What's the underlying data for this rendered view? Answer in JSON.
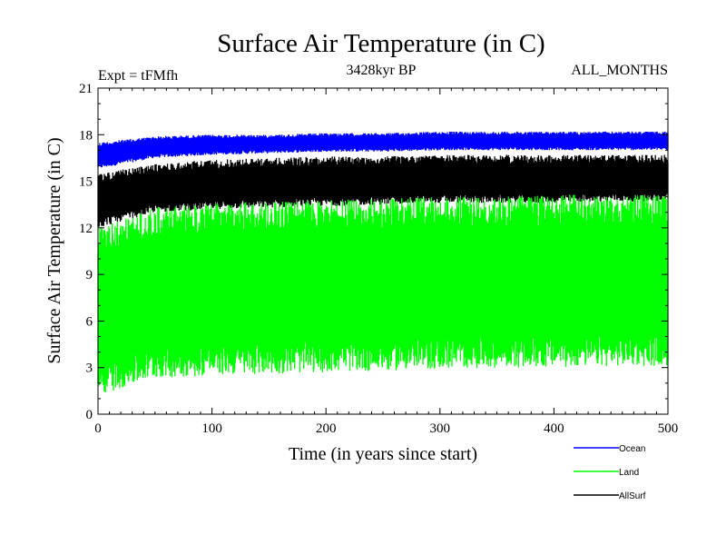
{
  "chart_data": {
    "type": "line",
    "title": "Surface Air Temperature (in C)",
    "subtitle_left": "Expt = tFMfh",
    "subtitle_center": "3428kyr BP",
    "subtitle_right": "ALL_MONTHS",
    "xlabel": "Time (in years since start)",
    "ylabel": "Surface Air Temperature (in C)",
    "xlim": [
      0,
      500
    ],
    "ylim": [
      0,
      21
    ],
    "xticks": [
      0,
      100,
      200,
      300,
      400,
      500
    ],
    "yticks": [
      0,
      3,
      6,
      9,
      12,
      15,
      18,
      21
    ],
    "grid": false,
    "legend_position": "bottom-right",
    "series": [
      {
        "name": "Ocean",
        "color": "#0000ff",
        "x": [
          0,
          50,
          100,
          150,
          200,
          250,
          300,
          350,
          400,
          450,
          500
        ],
        "upper": [
          17.5,
          17.9,
          18.0,
          18.0,
          18.1,
          18.1,
          18.2,
          18.2,
          18.2,
          18.2,
          18.2
        ],
        "lower": [
          15.8,
          16.5,
          16.7,
          16.8,
          16.9,
          16.9,
          17.0,
          17.0,
          17.0,
          17.0,
          17.0
        ]
      },
      {
        "name": "Land",
        "color": "#00ff00",
        "x": [
          0,
          50,
          100,
          150,
          200,
          250,
          300,
          350,
          400,
          450,
          500
        ],
        "upper": [
          12.0,
          13.3,
          13.6,
          13.7,
          13.8,
          13.9,
          14.0,
          14.0,
          14.1,
          14.2,
          14.1
        ],
        "lower": [
          1.2,
          2.3,
          2.5,
          2.6,
          2.7,
          2.8,
          2.9,
          3.0,
          3.0,
          3.1,
          3.1
        ]
      },
      {
        "name": "AllSurf",
        "color": "#000000",
        "x": [
          0,
          50,
          100,
          150,
          200,
          250,
          300,
          350,
          400,
          450,
          500
        ],
        "upper": [
          15.5,
          16.1,
          16.4,
          16.5,
          16.6,
          16.6,
          16.7,
          16.7,
          16.7,
          16.7,
          16.7
        ],
        "lower": [
          12.0,
          13.0,
          13.2,
          13.3,
          13.4,
          13.5,
          13.6,
          13.6,
          13.6,
          13.7,
          13.7
        ]
      }
    ]
  }
}
